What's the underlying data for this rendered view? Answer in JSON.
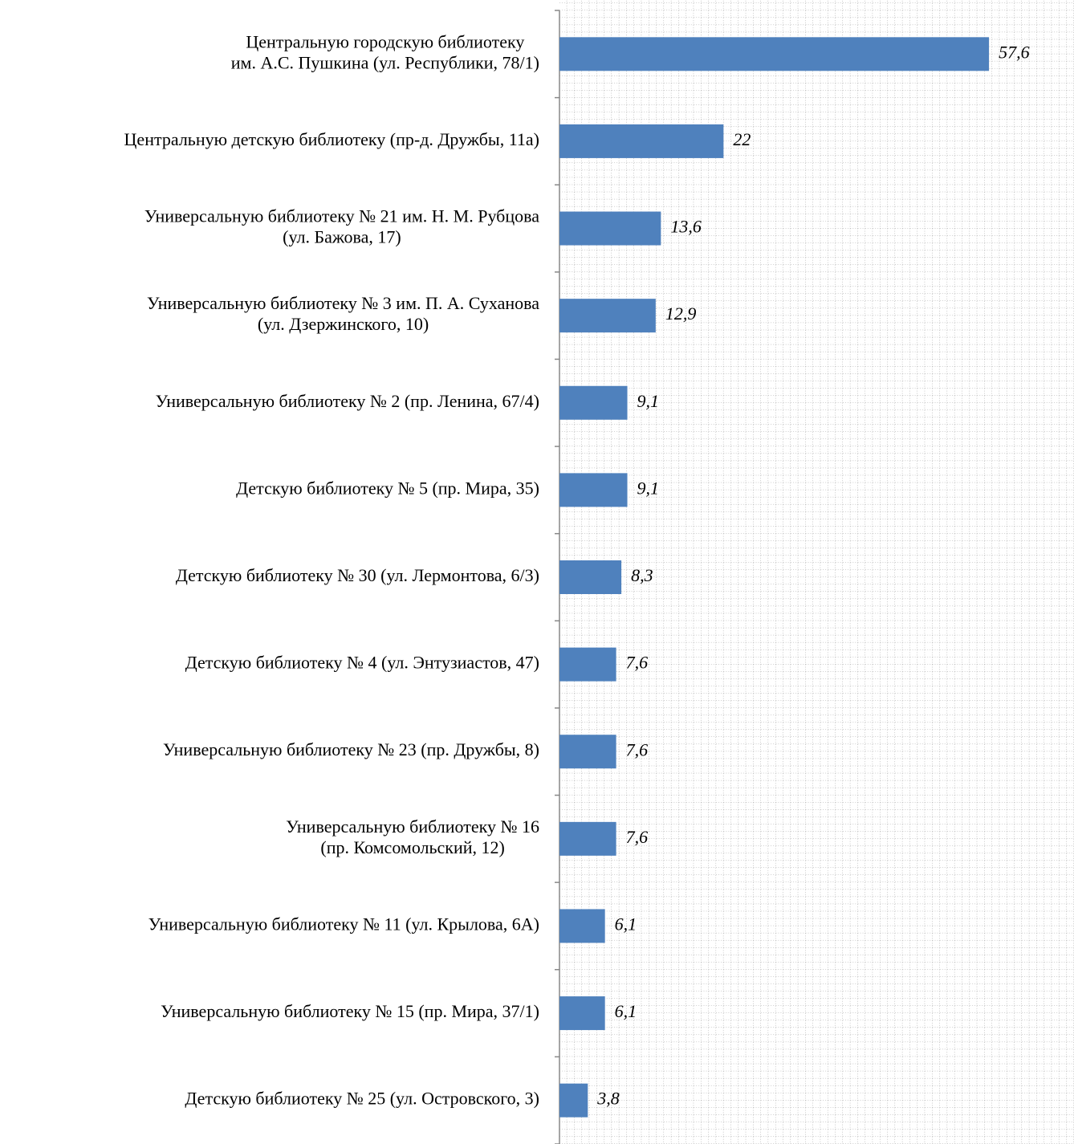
{
  "chart_data": {
    "type": "hbar",
    "categories": [
      "Центральную городскую библиотеку\nим. А.С. Пушкина (ул. Республики, 78/1)",
      "Центральную детскую библиотеку (пр-д. Дружбы, 11а)",
      "Универсальную библиотеку № 21 им. Н. М. Рубцова\n(ул. Бажова, 17)",
      "Универсальную библиотеку № 3 им. П. А. Суханова\n(ул. Дзержинского, 10)",
      "Универсальную библиотеку № 2 (пр. Ленина, 67/4)",
      "Детскую библиотеку № 5 (пр. Мира, 35)",
      "Детскую библиотеку № 30 (ул. Лермонтова, 6/3)",
      "Детскую библиотеку № 4 (ул. Энтузиастов, 47)",
      "Универсальную библиотеку № 23 (пр. Дружбы, 8)",
      "Универсальную библиотеку № 16\n(пр. Комсомольский, 12)",
      "Универсальную библиотеку № 11 (ул. Крылова, 6А)",
      "Универсальную библиотеку № 15 (пр. Мира, 37/1)",
      "Детскую библиотеку № 25 (ул. Островского, 3)"
    ],
    "values": [
      57.6,
      22,
      13.6,
      12.9,
      9.1,
      9.1,
      8.3,
      7.6,
      7.6,
      7.6,
      6.1,
      6.1,
      3.8
    ],
    "value_labels": [
      "57,6",
      "22",
      "13,6",
      "12,9",
      "9,1",
      "9,1",
      "8,3",
      "7,6",
      "7,6",
      "7,6",
      "6,1",
      "6,1",
      "3,8"
    ],
    "color": "#4f81bd",
    "xlim": [
      0,
      69
    ],
    "grid": true
  }
}
